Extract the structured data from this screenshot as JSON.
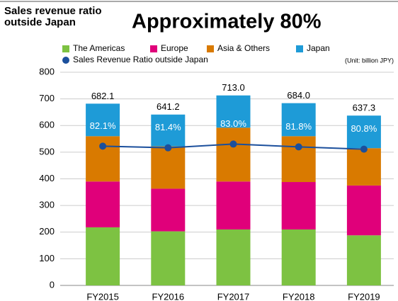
{
  "chart_data": {
    "type": "bar",
    "stacked": true,
    "title": "Sales revenue ratio outside Japan",
    "subtitle": "Approximately 80%",
    "unit": "(Unit: billion JPY)",
    "categories": [
      "FY2015",
      "FY2016",
      "FY2017",
      "FY2018",
      "FY2019"
    ],
    "series": [
      {
        "name": "The Americas",
        "color": "#7dc242",
        "values": [
          218,
          203,
          210,
          210,
          188
        ]
      },
      {
        "name": "Europe",
        "color": "#e0007a",
        "values": [
          172,
          160,
          180,
          178,
          187
        ]
      },
      {
        "name": "Asia & Others",
        "color": "#d97a00",
        "values": [
          170,
          159,
          202,
          172,
          140
        ]
      },
      {
        "name": "Japan",
        "color": "#1e9bd7",
        "values": [
          122.1,
          119.2,
          121,
          124,
          122.3
        ]
      },
      {
        "name": "Sales Revenue Ratio outside Japan",
        "type": "line",
        "axis": "y2",
        "color": "#1b4f9c",
        "values": [
          82.1,
          81.4,
          83.0,
          81.8,
          80.8
        ],
        "value_labels": [
          "82.1%",
          "81.4%",
          "83.0%",
          "81.8%",
          "80.8%"
        ]
      }
    ],
    "totals": [
      682.1,
      641.2,
      713.0,
      684.0,
      637.3
    ],
    "total_labels": [
      "682.1",
      "641.2",
      "713.0",
      "684.0",
      "637.3"
    ],
    "ylim": [
      0,
      800
    ],
    "yticks": [
      0,
      100,
      200,
      300,
      400,
      500,
      600,
      700,
      800
    ],
    "y2lim": [
      22,
      114
    ],
    "grid": true
  }
}
